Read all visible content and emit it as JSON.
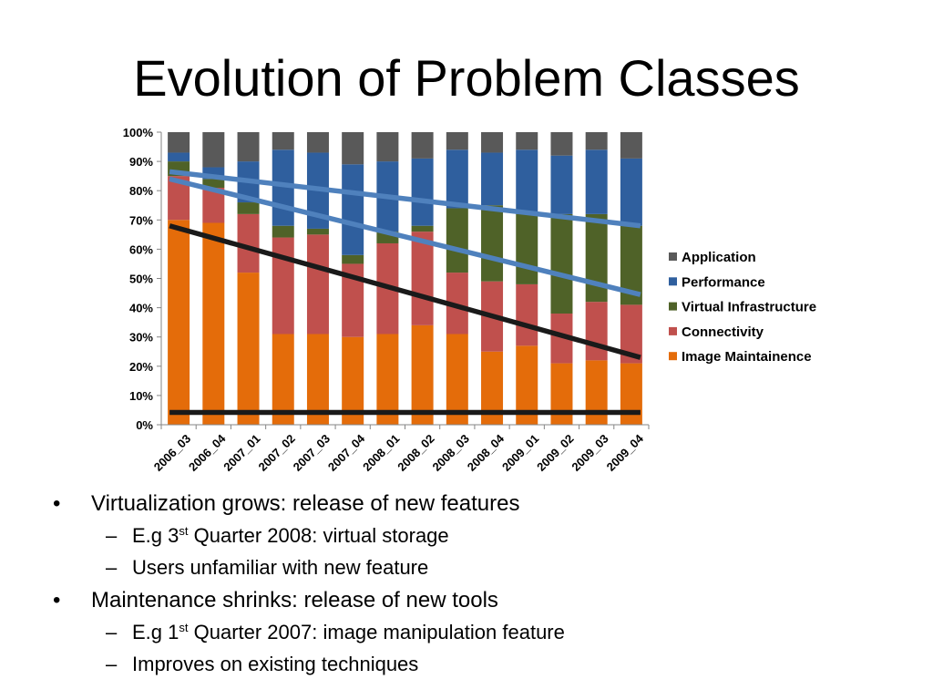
{
  "slide": {
    "title": "Evolution of Problem Classes"
  },
  "chart_data": {
    "type": "bar",
    "stacked": "percent",
    "categories": [
      "2006_03",
      "2006_04",
      "2007_01",
      "2007_02",
      "2007_03",
      "2007_04",
      "2008_01",
      "2008_02",
      "2008_03",
      "2008_04",
      "2009_01",
      "2009_02",
      "2009_03",
      "2009_04"
    ],
    "series": [
      {
        "name": "Image Maintainence",
        "color": "#E46C0A",
        "values": [
          70,
          69,
          52,
          31,
          31,
          30,
          31,
          34,
          31,
          25,
          27,
          21,
          22,
          21
        ]
      },
      {
        "name": "Connectivity",
        "color": "#C0504D",
        "values": [
          15,
          12,
          20,
          33,
          34,
          25,
          31,
          32,
          21,
          24,
          21,
          17,
          20,
          20
        ]
      },
      {
        "name": "Virtual Infrastructure",
        "color": "#4F6228",
        "values": [
          5,
          3,
          4,
          4,
          2,
          3,
          4,
          2,
          22,
          26,
          24,
          34,
          30,
          27
        ]
      },
      {
        "name": "Performance",
        "color": "#2F5F9E",
        "values": [
          3,
          4,
          14,
          26,
          26,
          31,
          24,
          23,
          20,
          18,
          22,
          20,
          22,
          23
        ]
      },
      {
        "name": "Application",
        "color": "#595959",
        "values": [
          7,
          12,
          10,
          6,
          7,
          11,
          10,
          9,
          6,
          7,
          6,
          8,
          6,
          9
        ]
      }
    ],
    "legend_order": [
      "Application",
      "Performance",
      "Virtual Infrastructure",
      "Connectivity",
      "Image Maintainence"
    ],
    "ylim": [
      0,
      100
    ],
    "yticks": [
      "0%",
      "10%",
      "20%",
      "30%",
      "40%",
      "50%",
      "60%",
      "70%",
      "80%",
      "90%",
      "100%"
    ],
    "legend_position": "right",
    "trend_lines": [
      {
        "color": "#4F81BD",
        "from": {
          "x": "2006_03",
          "y": 86.5
        },
        "to": {
          "x": "2009_04",
          "y": 68.0
        }
      },
      {
        "color": "#4F81BD",
        "from": {
          "x": "2006_03",
          "y": 84.0
        },
        "to": {
          "x": "2009_04",
          "y": 44.5
        }
      },
      {
        "color": "#1A1A1A",
        "from": {
          "x": "2006_03",
          "y": 68.0
        },
        "to": {
          "x": "2009_04",
          "y": 23.0
        }
      },
      {
        "color": "#1A1A1A",
        "from": {
          "x": "2006_03",
          "y": 4.2
        },
        "to": {
          "x": "2009_04",
          "y": 4.2
        }
      }
    ]
  },
  "bullets": [
    {
      "level": 1,
      "marker": "•",
      "text": "Virtualization grows: release of new features"
    },
    {
      "level": 2,
      "marker": "–",
      "pre": "E.g 3",
      "sup": "st",
      "post": " Quarter 2008: virtual storage"
    },
    {
      "level": 2,
      "marker": "–",
      "text": "Users unfamiliar with new feature"
    },
    {
      "level": 1,
      "marker": "•",
      "text": "Maintenance shrinks: release of new tools"
    },
    {
      "level": 2,
      "marker": "–",
      "pre": "E.g 1",
      "sup": "st",
      "post": " Quarter 2007: image manipulation feature"
    },
    {
      "level": 2,
      "marker": "–",
      "text": "Improves on existing techniques"
    }
  ]
}
